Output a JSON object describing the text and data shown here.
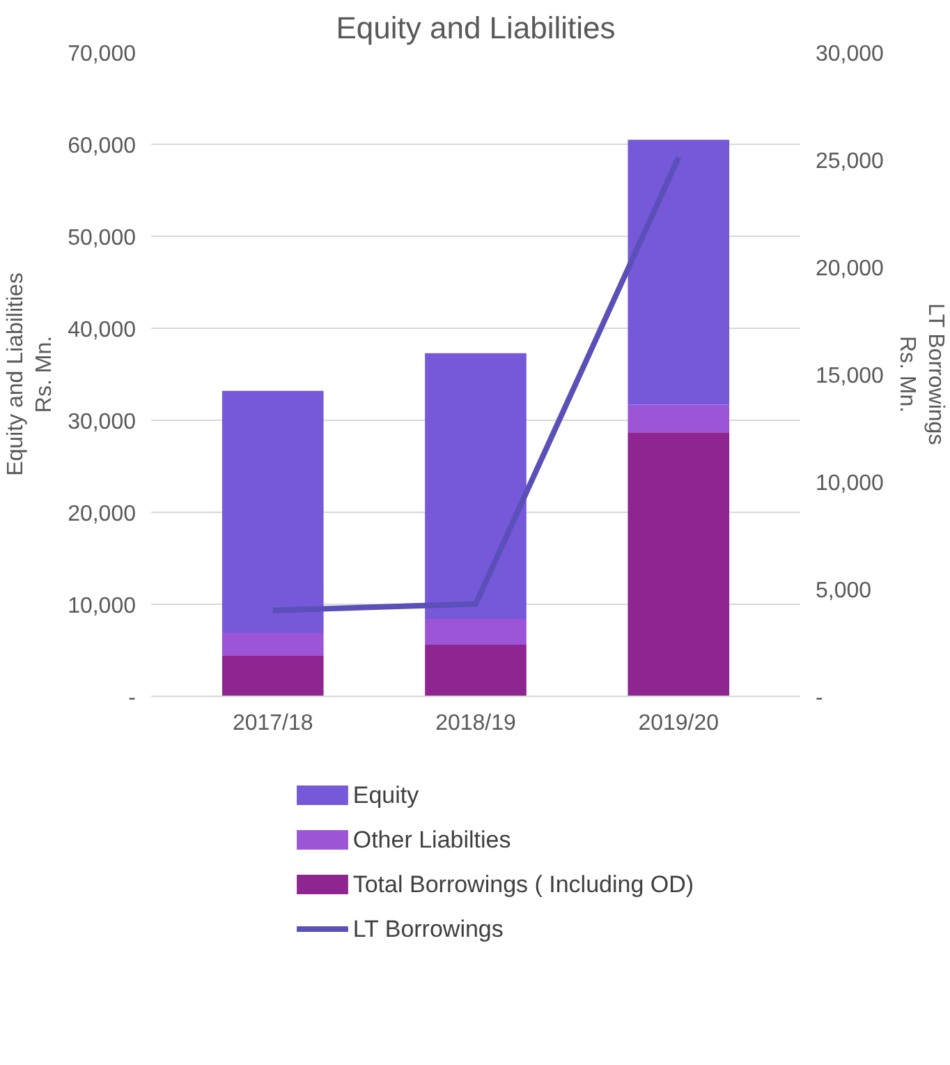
{
  "chart_data": {
    "type": "bar",
    "title": "Equity and Liabilities",
    "ylabel": "Equity and Liabilities\nRs. Mn.",
    "y2label": "LT Borrowings\nRs. Mn.",
    "categories": [
      "2017/18",
      "2018/19",
      "2019/20"
    ],
    "stacked": true,
    "series": [
      {
        "name": "Total Borrowings (  Including OD)",
        "color": "#8e2590",
        "values": [
          4400,
          5600,
          28700
        ]
      },
      {
        "name": "Other Liabilties",
        "color": "#9b55d6",
        "values": [
          2500,
          2800,
          3000
        ]
      },
      {
        "name": "Equity",
        "color": "#7559d9",
        "values": [
          26300,
          28900,
          28800
        ]
      },
      {
        "name": "LT Borrowings",
        "type": "line",
        "axis": "y2",
        "color": "#5b4fb8",
        "values": [
          4000,
          4300,
          25100
        ]
      }
    ],
    "ylim": [
      0,
      70000
    ],
    "yticks": [
      {
        "value": 0,
        "label": "-"
      },
      {
        "value": 10000,
        "label": "10,000"
      },
      {
        "value": 20000,
        "label": "20,000"
      },
      {
        "value": 30000,
        "label": "30,000"
      },
      {
        "value": 40000,
        "label": "40,000"
      },
      {
        "value": 50000,
        "label": "50,000"
      },
      {
        "value": 60000,
        "label": "60,000"
      },
      {
        "value": 70000,
        "label": "70,000"
      }
    ],
    "y2lim": [
      0,
      30000
    ],
    "y2ticks": [
      {
        "value": 0,
        "label": "-"
      },
      {
        "value": 5000,
        "label": "5,000"
      },
      {
        "value": 10000,
        "label": "10,000"
      },
      {
        "value": 15000,
        "label": "15,000"
      },
      {
        "value": 20000,
        "label": "20,000"
      },
      {
        "value": 25000,
        "label": "25,000"
      },
      {
        "value": 30000,
        "label": "30,000"
      }
    ],
    "grid": "y",
    "legend": "bottom"
  }
}
